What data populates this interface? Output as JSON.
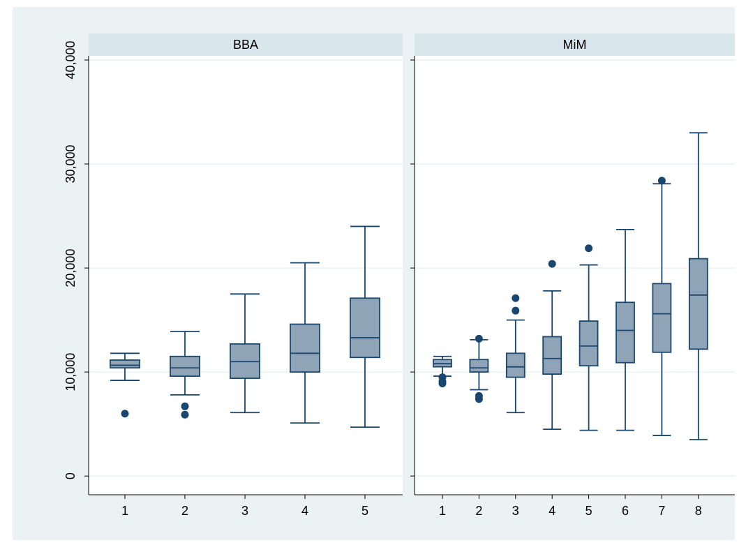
{
  "chart_data": {
    "type": "boxplot",
    "y_ticks": [
      "0",
      "10,000",
      "20,000",
      "30,000",
      "40,000"
    ],
    "y_tick_values": [
      0,
      10000,
      20000,
      30000,
      40000
    ],
    "ylim": [
      -1800,
      40400
    ],
    "grid": true,
    "colors": {
      "outer_background": "#eaf2f3",
      "plot_background": "#ffffff",
      "panel_header": "#d9e6eb",
      "grid": "#eaf2f3",
      "box_fill": "#90a4b7",
      "box_stroke": "#1a476f",
      "outlier": "#1a476f",
      "axis": "#000000"
    },
    "panels": [
      {
        "title": "BBA",
        "categories": [
          "1",
          "2",
          "3",
          "4",
          "5"
        ],
        "boxes": [
          {
            "whisker_low": 9200,
            "q1": 10400,
            "median": 10650,
            "q3": 11150,
            "whisker_high": 11800,
            "outliers": [
              6000
            ]
          },
          {
            "whisker_low": 7800,
            "q1": 9600,
            "median": 10400,
            "q3": 11500,
            "whisker_high": 13900,
            "outliers": [
              6700,
              5900
            ]
          },
          {
            "whisker_low": 6100,
            "q1": 9400,
            "median": 11000,
            "q3": 12700,
            "whisker_high": 17500,
            "outliers": []
          },
          {
            "whisker_low": 5100,
            "q1": 10000,
            "median": 11800,
            "q3": 14600,
            "whisker_high": 20500,
            "outliers": []
          },
          {
            "whisker_low": 4700,
            "q1": 11400,
            "median": 13300,
            "q3": 17100,
            "whisker_high": 24000,
            "outliers": []
          }
        ]
      },
      {
        "title": "MiM",
        "categories": [
          "1",
          "2",
          "3",
          "4",
          "5",
          "6",
          "7",
          "8"
        ],
        "boxes": [
          {
            "whisker_low": 9600,
            "q1": 10500,
            "median": 10800,
            "q3": 11200,
            "whisker_high": 11500,
            "outliers": [
              9500,
              9100,
              8900
            ]
          },
          {
            "whisker_low": 8300,
            "q1": 10000,
            "median": 10400,
            "q3": 11200,
            "whisker_high": 13100,
            "outliers": [
              13200,
              7700,
              7400
            ]
          },
          {
            "whisker_low": 6100,
            "q1": 9500,
            "median": 10500,
            "q3": 11800,
            "whisker_high": 15000,
            "outliers": [
              17100,
              15900
            ]
          },
          {
            "whisker_low": 4500,
            "q1": 9800,
            "median": 11300,
            "q3": 13400,
            "whisker_high": 17800,
            "outliers": [
              20400
            ]
          },
          {
            "whisker_low": 4400,
            "q1": 10600,
            "median": 12500,
            "q3": 14900,
            "whisker_high": 20300,
            "outliers": [
              21900
            ]
          },
          {
            "whisker_low": 4400,
            "q1": 10900,
            "median": 14000,
            "q3": 16700,
            "whisker_high": 23700,
            "outliers": []
          },
          {
            "whisker_low": 3900,
            "q1": 11900,
            "median": 15600,
            "q3": 18500,
            "whisker_high": 28100,
            "outliers": [
              28400
            ]
          },
          {
            "whisker_low": 3500,
            "q1": 12200,
            "median": 17400,
            "q3": 20900,
            "whisker_high": 33000,
            "outliers": []
          }
        ]
      }
    ]
  }
}
